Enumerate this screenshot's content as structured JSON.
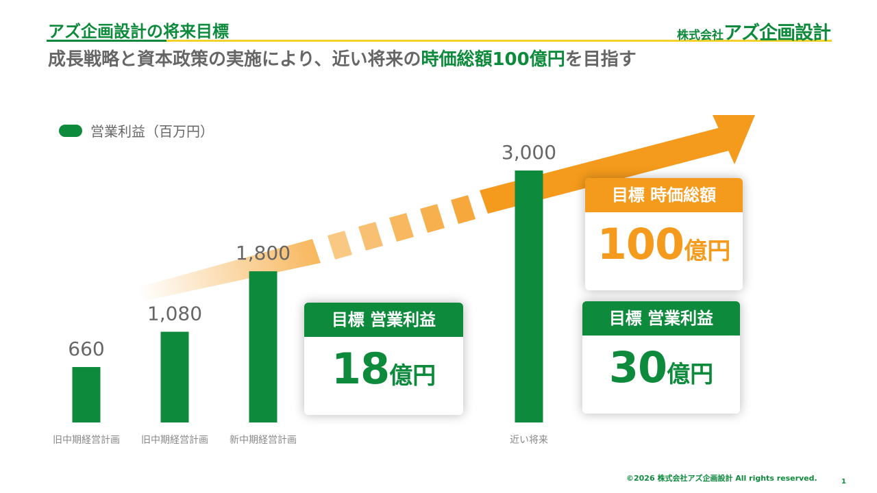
{
  "header": {
    "title": "アズ企画設計の将来目標",
    "logo_small": "株式会社",
    "logo_big": "アズ企画設計",
    "subtitle_pre": "成長戦略と資本政策の実施により、近い将来の",
    "subtitle_highlight": "時価総額100億円",
    "subtitle_post": "を目指す"
  },
  "chart_data": {
    "type": "bar",
    "categories": [
      "旧中期経営計画",
      "旧中期経営計画",
      "新中期経営計画",
      "近い将来"
    ],
    "series": [
      {
        "name": "営業利益（百万円）",
        "values": [
          660,
          1080,
          1800,
          3000
        ]
      }
    ],
    "data_labels": [
      "660",
      "1,080",
      "1,800",
      "3,000"
    ],
    "ylim": [
      0,
      3000
    ],
    "grid": false,
    "legend_position": "top-left",
    "bar_color": "#0e8a3c",
    "arrow_color": "#f49a1c"
  },
  "cards": {
    "profit18": {
      "header": "目標 営業利益",
      "value": "18",
      "unit": "億円"
    },
    "profit30": {
      "header": "目標 営業利益",
      "value": "30",
      "unit": "億円"
    },
    "market_cap": {
      "header": "目標 時価総額",
      "value": "100",
      "unit": "億円"
    }
  },
  "colors": {
    "green": "#0e8a3c",
    "orange": "#f49a1c",
    "yellow": "#f2d12a",
    "gray": "#666666"
  },
  "footer": {
    "copyright": "©2026 株式会社アズ企画設計 All rights reserved.",
    "page_number": "1"
  }
}
